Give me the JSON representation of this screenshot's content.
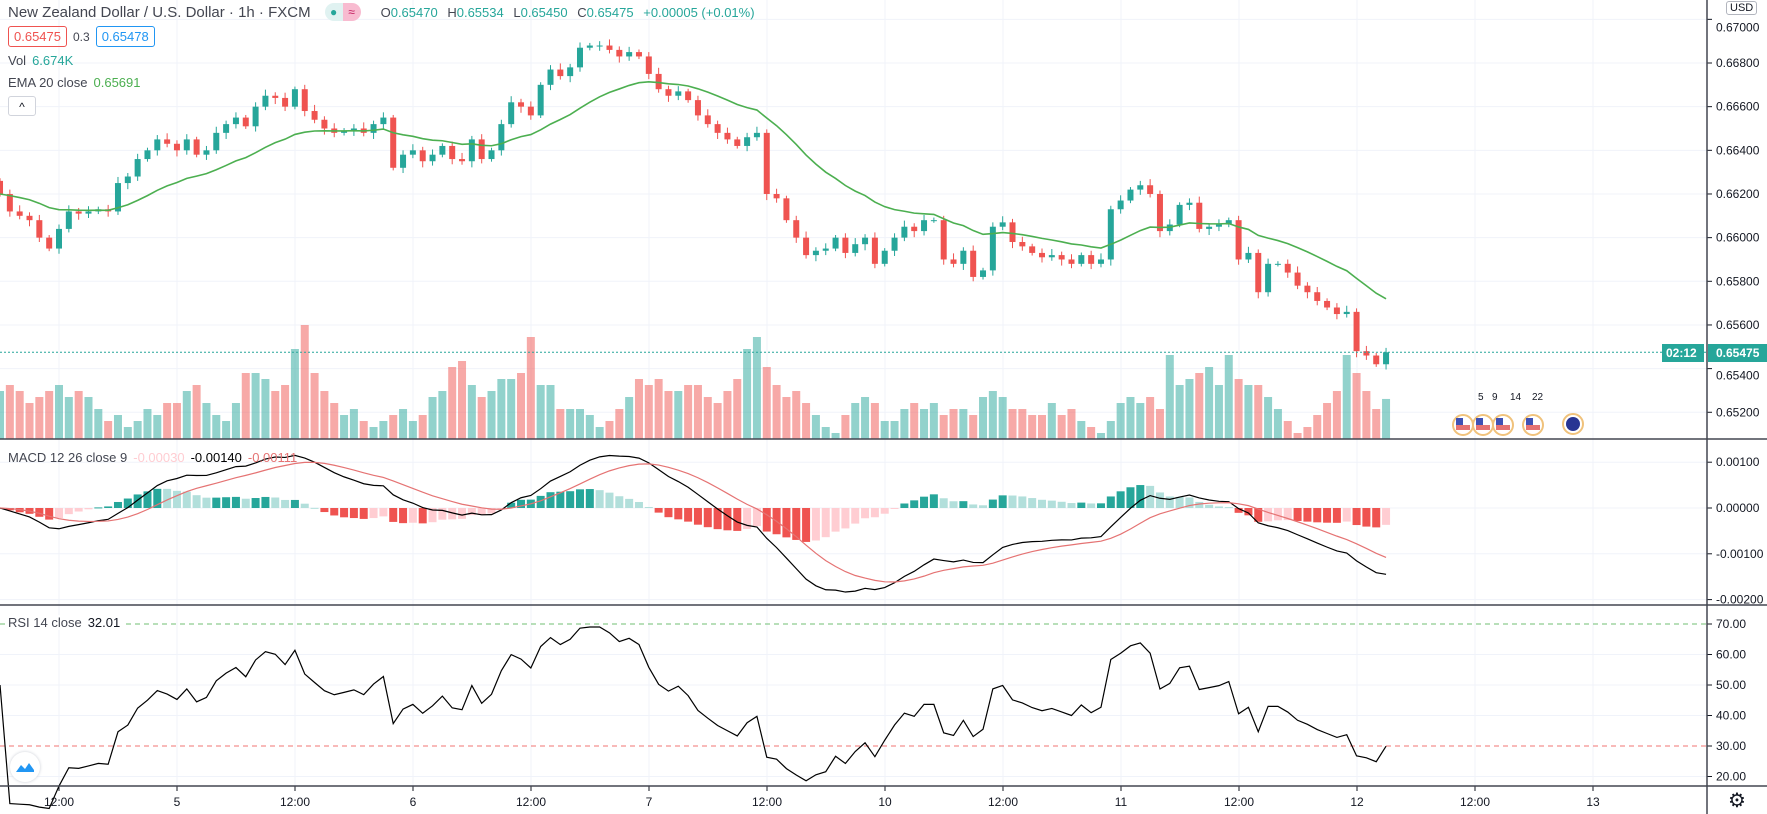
{
  "header": {
    "title": "New Zealand Dollar / U.S. Dollar · 1h · FXCM",
    "badge_icons": [
      "market-open-dot",
      "approx-icon"
    ],
    "ohlc": [
      {
        "k": "O",
        "v": "0.65470"
      },
      {
        "k": "H",
        "v": "0.65534"
      },
      {
        "k": "L",
        "v": "0.65450"
      },
      {
        "k": "C",
        "v": "0.65475"
      }
    ],
    "change": "+0.00005 (+0.01%)",
    "bid": "0.65475",
    "spread": "0.3",
    "ask": "0.65478"
  },
  "legend": {
    "vol_label": "Vol",
    "vol_value": "6.674K",
    "ema_label": "EMA 20 close",
    "ema_value": "0.65691",
    "collapse_icon": "^",
    "macd_label": "MACD 12 26 close 9",
    "macd_hist": "-0.00030",
    "macd_value": "-0.00140",
    "macd_signal": "-0.00111",
    "rsi_label": "RSI 14 close",
    "rsi_value": "32.01"
  },
  "price_axis": {
    "currency": "USD",
    "ticks": [
      "0.67000",
      "0.66800",
      "0.66600",
      "0.66400",
      "0.66200",
      "0.66000",
      "0.65800",
      "0.65600",
      "0.65400",
      "0.65200"
    ],
    "last_price": "0.65475",
    "countdown": "02:12"
  },
  "macd_axis": {
    "ticks": [
      "0.00100",
      "0.00000",
      "-0.00100",
      "-0.00200"
    ]
  },
  "rsi_axis": {
    "ticks": [
      "70.00",
      "60.00",
      "50.00",
      "40.00",
      "30.00",
      "20.00"
    ]
  },
  "time_axis": {
    "labels": [
      "12:00",
      "5",
      "12:00",
      "6",
      "12:00",
      "7",
      "12:00",
      "10",
      "12:00",
      "11",
      "12:00",
      "12",
      "12:00",
      "13"
    ]
  },
  "events": {
    "numbers": [
      "5",
      "9",
      "14",
      "22"
    ]
  },
  "colors": {
    "up": "#26a69a",
    "down": "#ef5350",
    "ema": "#4caf50",
    "macd": "#000000",
    "signal": "#e57373",
    "grid": "#f0f3fa"
  },
  "chart_data": {
    "type": "candlestick",
    "symbol": "NZDUSD",
    "interval": "1h",
    "price_range": [
      0.6515,
      0.6708
    ],
    "close": [
      0.662,
      0.6612,
      0.661,
      0.6608,
      0.66,
      0.6595,
      0.6604,
      0.6612,
      0.6611,
      0.6612,
      0.6613,
      0.6612,
      0.6625,
      0.6628,
      0.6636,
      0.664,
      0.6645,
      0.6643,
      0.664,
      0.6645,
      0.6638,
      0.664,
      0.6648,
      0.6652,
      0.6655,
      0.6651,
      0.666,
      0.6665,
      0.6664,
      0.666,
      0.6668,
      0.6658,
      0.6654,
      0.665,
      0.6648,
      0.6649,
      0.665,
      0.6648,
      0.6652,
      0.6655,
      0.6632,
      0.6638,
      0.664,
      0.6635,
      0.6638,
      0.6642,
      0.6636,
      0.6635,
      0.6645,
      0.6636,
      0.664,
      0.6652,
      0.6662,
      0.666,
      0.6656,
      0.667,
      0.6677,
      0.6674,
      0.6678,
      0.6687,
      0.6688,
      0.6688,
      0.6686,
      0.6683,
      0.6685,
      0.6683,
      0.6675,
      0.6668,
      0.6665,
      0.6667,
      0.6663,
      0.6656,
      0.6652,
      0.6648,
      0.6645,
      0.6642,
      0.6646,
      0.6648,
      0.662,
      0.6618,
      0.6608,
      0.66,
      0.6592,
      0.6594,
      0.6595,
      0.66,
      0.6593,
      0.6597,
      0.66,
      0.6588,
      0.6594,
      0.66,
      0.6605,
      0.6603,
      0.6608,
      0.6608,
      0.659,
      0.6588,
      0.6594,
      0.6582,
      0.6585,
      0.6605,
      0.6607,
      0.6598,
      0.6596,
      0.6593,
      0.6591,
      0.6592,
      0.659,
      0.6588,
      0.6592,
      0.6588,
      0.659,
      0.6613,
      0.6617,
      0.6622,
      0.6624,
      0.662,
      0.6603,
      0.6606,
      0.6615,
      0.6616,
      0.6604,
      0.6605,
      0.6606,
      0.6608,
      0.659,
      0.6593,
      0.6575,
      0.6588,
      0.6588,
      0.6584,
      0.6578,
      0.6575,
      0.6571,
      0.6568,
      0.6565,
      0.6566,
      0.6548,
      0.6546,
      0.6542,
      0.65475
    ],
    "volume_k": [
      8,
      9,
      8,
      6,
      7,
      8,
      9,
      7,
      8,
      7,
      5,
      3,
      4,
      2,
      3,
      5,
      4,
      6,
      6,
      8,
      9,
      6,
      4,
      3,
      6,
      11,
      11,
      10,
      8,
      9,
      15,
      19,
      11,
      8,
      6,
      4,
      5,
      3,
      2,
      3,
      4,
      5,
      3,
      4,
      7,
      8,
      12,
      13,
      9,
      7,
      8,
      10,
      10,
      11,
      17,
      9,
      9,
      5,
      5,
      5,
      4,
      2,
      3,
      5,
      7,
      10,
      9,
      10,
      8,
      8,
      9,
      9,
      7,
      6,
      8,
      10,
      15,
      17,
      12,
      9,
      7,
      8,
      6,
      4,
      2,
      1,
      4,
      6,
      7,
      6,
      3,
      3,
      5,
      6,
      5,
      6,
      4,
      5,
      5,
      4,
      7,
      8,
      7,
      5,
      5,
      4,
      4,
      6,
      4,
      5,
      3,
      2,
      1,
      3,
      6,
      7,
      6,
      7,
      5,
      14,
      9,
      10,
      11,
      12,
      9,
      14,
      10,
      9,
      9,
      7,
      5,
      3,
      1,
      2,
      4,
      6,
      8,
      14,
      11,
      8,
      5,
      6.674
    ],
    "indicators": {
      "ema": 20,
      "macd": [
        12,
        26,
        9
      ],
      "rsi": 14,
      "rsi_levels": [
        70,
        30
      ]
    }
  }
}
